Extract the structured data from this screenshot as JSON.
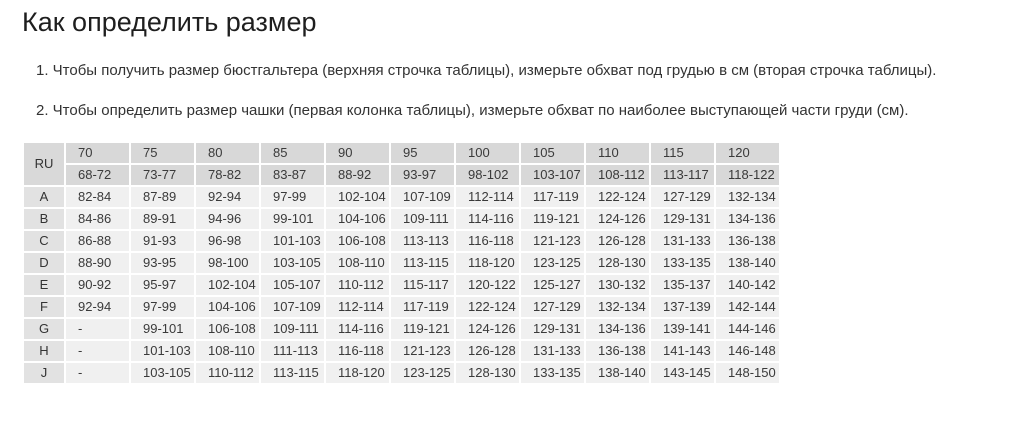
{
  "page": {
    "title": "Как определить размер",
    "instructions": [
      "1. Чтобы получить размер бюстгальтера (верхняя строчка таблицы), измерьте обхват под грудью в см (вторая строчка таблицы).",
      "2. Чтобы определить размер чашки (первая колонка таблицы), измерьте обхват по наиболее выступающей части груди (см)."
    ]
  },
  "table": {
    "corner_label": "RU",
    "band_sizes": [
      "70",
      "75",
      "80",
      "85",
      "90",
      "95",
      "100",
      "105",
      "110",
      "115",
      "120"
    ],
    "underbust_ranges": [
      "68-72",
      "73-77",
      "78-82",
      "83-87",
      "88-92",
      "93-97",
      "98-102",
      "103-107",
      "108-112",
      "113-117",
      "118-122"
    ],
    "rows": [
      {
        "cup": "A",
        "values": [
          "82-84",
          "87-89",
          "92-94",
          "97-99",
          "102-104",
          "107-109",
          "112-114",
          "117-119",
          "122-124",
          "127-129",
          "132-134"
        ]
      },
      {
        "cup": "B",
        "values": [
          "84-86",
          "89-91",
          "94-96",
          "99-101",
          "104-106",
          "109-111",
          "114-116",
          "119-121",
          "124-126",
          "129-131",
          "134-136"
        ]
      },
      {
        "cup": "C",
        "values": [
          "86-88",
          "91-93",
          "96-98",
          "101-103",
          "106-108",
          "113-113",
          "116-118",
          "121-123",
          "126-128",
          "131-133",
          "136-138"
        ]
      },
      {
        "cup": "D",
        "values": [
          "88-90",
          "93-95",
          "98-100",
          "103-105",
          "108-110",
          "113-115",
          "118-120",
          "123-125",
          "128-130",
          "133-135",
          "138-140"
        ]
      },
      {
        "cup": "E",
        "values": [
          "90-92",
          "95-97",
          "102-104",
          "105-107",
          "110-112",
          "115-117",
          "120-122",
          "125-127",
          "130-132",
          "135-137",
          "140-142"
        ]
      },
      {
        "cup": "F",
        "values": [
          "92-94",
          "97-99",
          "104-106",
          "107-109",
          "112-114",
          "117-119",
          "122-124",
          "127-129",
          "132-134",
          "137-139",
          "142-144"
        ]
      },
      {
        "cup": "G",
        "values": [
          "-",
          "99-101",
          "106-108",
          "109-111",
          "114-116",
          "119-121",
          "124-126",
          "129-131",
          "134-136",
          "139-141",
          "144-146"
        ]
      },
      {
        "cup": "H",
        "values": [
          "-",
          "101-103",
          "108-110",
          "111-113",
          "116-118",
          "121-123",
          "126-128",
          "131-133",
          "136-138",
          "141-143",
          "146-148"
        ]
      },
      {
        "cup": "J",
        "values": [
          "-",
          "103-105",
          "110-112",
          "113-115",
          "118-120",
          "123-125",
          "128-130",
          "133-135",
          "138-140",
          "143-145",
          "148-150"
        ]
      }
    ],
    "colors": {
      "header_bg": "#d8d8d8",
      "corner_bg": "#d9d9d9",
      "label_bg": "#e2e2e2",
      "data_bg": "#f0f0f0",
      "text": "#3a3a3a"
    }
  }
}
